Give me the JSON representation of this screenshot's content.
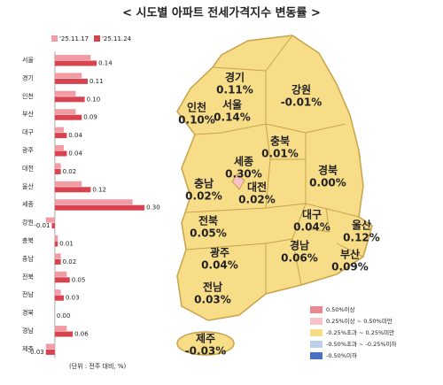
{
  "chart_data": {
    "type": "bar",
    "orientation": "horizontal",
    "title": "< 시도별 아파트 전세가격지수 변동률 >",
    "note": "(단위 : 전주 대비, %)",
    "categories": [
      "서울",
      "경기",
      "인천",
      "부산",
      "대구",
      "광주",
      "대전",
      "울산",
      "세종",
      "강원",
      "충북",
      "충남",
      "전북",
      "전남",
      "경북",
      "경남",
      "제주"
    ],
    "series": [
      {
        "name": "'25.11.17",
        "color": "#f19ca5",
        "values": [
          0.12,
          0.09,
          0.07,
          0.07,
          0.03,
          0.03,
          0.02,
          0.09,
          0.26,
          -0.03,
          0.01,
          0.02,
          0.04,
          0.02,
          0.0,
          0.04,
          -0.03
        ]
      },
      {
        "name": "'25.11.24",
        "color": "#d9424f",
        "values": [
          0.14,
          0.11,
          0.1,
          0.09,
          0.04,
          0.04,
          0.02,
          0.12,
          0.3,
          -0.01,
          0.01,
          0.02,
          0.05,
          0.03,
          0.0,
          0.06,
          -0.03
        ],
        "value_labels": [
          "0.14",
          "0.11",
          "0.10",
          "0.09",
          "0.04",
          "0.04",
          "0.02",
          "0.12",
          "0.30",
          "-0.01",
          "0.01",
          "0.02",
          "0.05",
          "0.03",
          "0.00",
          "0.06",
          "-0.03"
        ]
      }
    ],
    "xlim": [
      -0.05,
      0.35
    ]
  },
  "map": {
    "regions": [
      {
        "name": "경기",
        "label": "0.11%"
      },
      {
        "name": "강원",
        "label": "-0.01%"
      },
      {
        "name": "인천",
        "label": "0.10%"
      },
      {
        "name": "서울",
        "label": "0.14%"
      },
      {
        "name": "충북",
        "label": "0.01%"
      },
      {
        "name": "세종",
        "label": "0.30%"
      },
      {
        "name": "충남",
        "label": "0.02%"
      },
      {
        "name": "대전",
        "label": "0.02%"
      },
      {
        "name": "경북",
        "label": "0.00%"
      },
      {
        "name": "전북",
        "label": "0.05%"
      },
      {
        "name": "대구",
        "label": "0.04%"
      },
      {
        "name": "울산",
        "label": "0.12%"
      },
      {
        "name": "광주",
        "label": "0.04%"
      },
      {
        "name": "경남",
        "label": "0.06%"
      },
      {
        "name": "부산",
        "label": "0.09%"
      },
      {
        "name": "전남",
        "label": "0.03%"
      },
      {
        "name": "제주",
        "label": "-0.03%"
      }
    ],
    "legend": [
      {
        "label": "0.50%이상",
        "color": "#e88a8f"
      },
      {
        "label": "0.25%이상 ~ 0.50%미만",
        "color": "#f6c3c6"
      },
      {
        "label": "-0.25%초과 ~ 0.25%미만",
        "color": "#f8dd88"
      },
      {
        "label": "-0.50%초과 ~ -0.25%이하",
        "color": "#bccfe9"
      },
      {
        "label": "-0.50%이하",
        "color": "#4a72c4"
      }
    ]
  }
}
